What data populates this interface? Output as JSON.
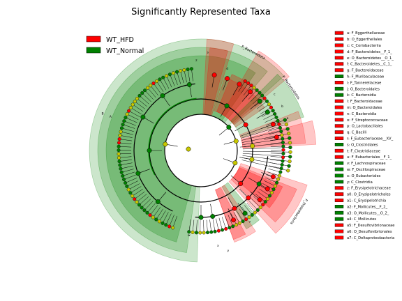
{
  "chart_data": {
    "type": "cladogram",
    "title": "Significantly Represented Taxa",
    "colors": {
      "WT_HFD": "#ff0000",
      "WT_Normal": "#008000",
      "neutral_node": "#c8c800",
      "edge": "#000000"
    },
    "groups": [
      {
        "name": "WT_HFD",
        "color": "#ff0000"
      },
      {
        "name": "WT_Normal",
        "color": "#008000"
      }
    ],
    "highlighted_taxa": [
      {
        "id": "a",
        "name": "F_Eggerthellaceae",
        "group": "WT_HFD"
      },
      {
        "id": "b",
        "name": "O_Eggerthellales",
        "group": "WT_HFD"
      },
      {
        "id": "c",
        "name": "C_Coriobacteriia",
        "group": "WT_HFD"
      },
      {
        "id": "d",
        "name": "F_Bacteroidetes__F_1_",
        "group": "WT_HFD"
      },
      {
        "id": "e",
        "name": "O_Bacteroidetes__O_1_",
        "group": "WT_HFD"
      },
      {
        "id": "f",
        "name": "C_Bacteroidetes__C_1_",
        "group": "WT_HFD"
      },
      {
        "id": "g",
        "name": "F_Bacteroidaceae",
        "group": "WT_HFD"
      },
      {
        "id": "h",
        "name": "F_Muribaculaceae",
        "group": "WT_Normal"
      },
      {
        "id": "i",
        "name": "F_Tannerellaceae",
        "group": "WT_HFD"
      },
      {
        "id": "j",
        "name": "O_Bacteroidales",
        "group": "WT_Normal"
      },
      {
        "id": "k",
        "name": "C_Bacteroidia",
        "group": "WT_Normal"
      },
      {
        "id": "l",
        "name": "F_Bacteroidaceae",
        "group": "WT_HFD"
      },
      {
        "id": "m",
        "name": "O_Bacteroidales",
        "group": "WT_HFD"
      },
      {
        "id": "n",
        "name": "C_Bacteroidia",
        "group": "WT_HFD"
      },
      {
        "id": "o",
        "name": "F_Streptococcaceae",
        "group": "WT_HFD"
      },
      {
        "id": "p",
        "name": "O_Lactobacillales",
        "group": "WT_HFD"
      },
      {
        "id": "q",
        "name": "C_Bacilli",
        "group": "WT_HFD"
      },
      {
        "id": "r",
        "name": "F_Eubacteriaceae__XV_",
        "group": "WT_HFD"
      },
      {
        "id": "s",
        "name": "O_Clostridiales",
        "group": "WT_Normal"
      },
      {
        "id": "t",
        "name": "F_Clostridiaceae",
        "group": "WT_HFD"
      },
      {
        "id": "u",
        "name": "F_Eubacteriales__F_1_",
        "group": "WT_HFD"
      },
      {
        "id": "v",
        "name": "F_Lachnospiraceae",
        "group": "WT_Normal"
      },
      {
        "id": "w",
        "name": "F_Oscillospiraceae",
        "group": "WT_Normal"
      },
      {
        "id": "x",
        "name": "O_Eubacteriales",
        "group": "WT_Normal"
      },
      {
        "id": "y",
        "name": "C_Clostridia",
        "group": "WT_Normal"
      },
      {
        "id": "z",
        "name": "F_Erysipelotrichaceae",
        "group": "WT_HFD"
      },
      {
        "id": "a0",
        "name": "O_Erysipelotrichales",
        "group": "WT_HFD"
      },
      {
        "id": "a1",
        "name": "C_Erysipelotrichia",
        "group": "WT_HFD"
      },
      {
        "id": "a2",
        "name": "F_Mollicutes__F_2_",
        "group": "WT_Normal"
      },
      {
        "id": "a3",
        "name": "O_Mollicutes__O_2_",
        "group": "WT_Normal"
      },
      {
        "id": "a4",
        "name": "C_Mollicutes",
        "group": "WT_Normal"
      },
      {
        "id": "a5",
        "name": "F_Desulfovibrionaceae",
        "group": "WT_HFD"
      },
      {
        "id": "a6",
        "name": "O_Desulfovibrionales",
        "group": "WT_HFD"
      },
      {
        "id": "a7",
        "name": "C_Deltaproteobacteria",
        "group": "WT_HFD"
      }
    ],
    "phylum_labels": [
      {
        "text": "P_Bacteroidota",
        "group": "WT_HFD"
      },
      {
        "text": "P_Bacteroidetes",
        "group": "WT_Normal"
      },
      {
        "text": "P_Proteobacteria",
        "group": "WT_HFD"
      }
    ],
    "clade_labels": [
      "A",
      "B",
      "w",
      "v",
      "s",
      "z",
      "y",
      "x",
      "a",
      "b",
      "c",
      "d",
      "e",
      "f",
      "g",
      "h",
      "i",
      "j",
      "k",
      "l",
      "m",
      "n",
      "o",
      "p",
      "q",
      "r",
      "a0",
      "a1",
      "a2",
      "a3",
      "a4",
      "a5",
      "a6",
      "a7"
    ],
    "legend_position": "top-left",
    "key_position": "right"
  }
}
